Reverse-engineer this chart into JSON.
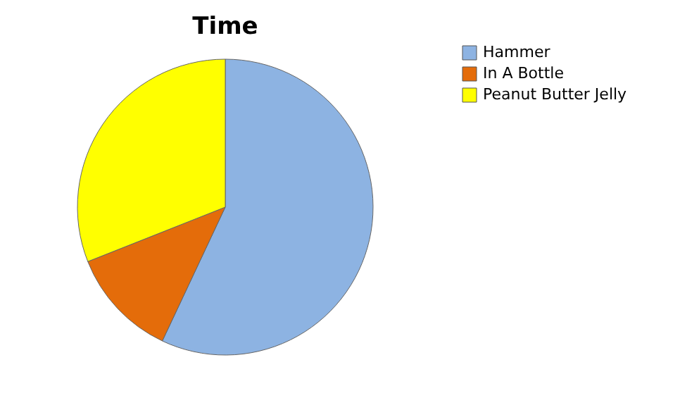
{
  "chart_data": {
    "type": "pie",
    "title": "Time",
    "categories": [
      "Hammer",
      "In A Bottle",
      "Peanut Butter Jelly"
    ],
    "values": [
      57,
      12,
      31
    ],
    "colors": [
      "#8db3e2",
      "#e46c0a",
      "#ffff00"
    ],
    "legend": "right"
  }
}
